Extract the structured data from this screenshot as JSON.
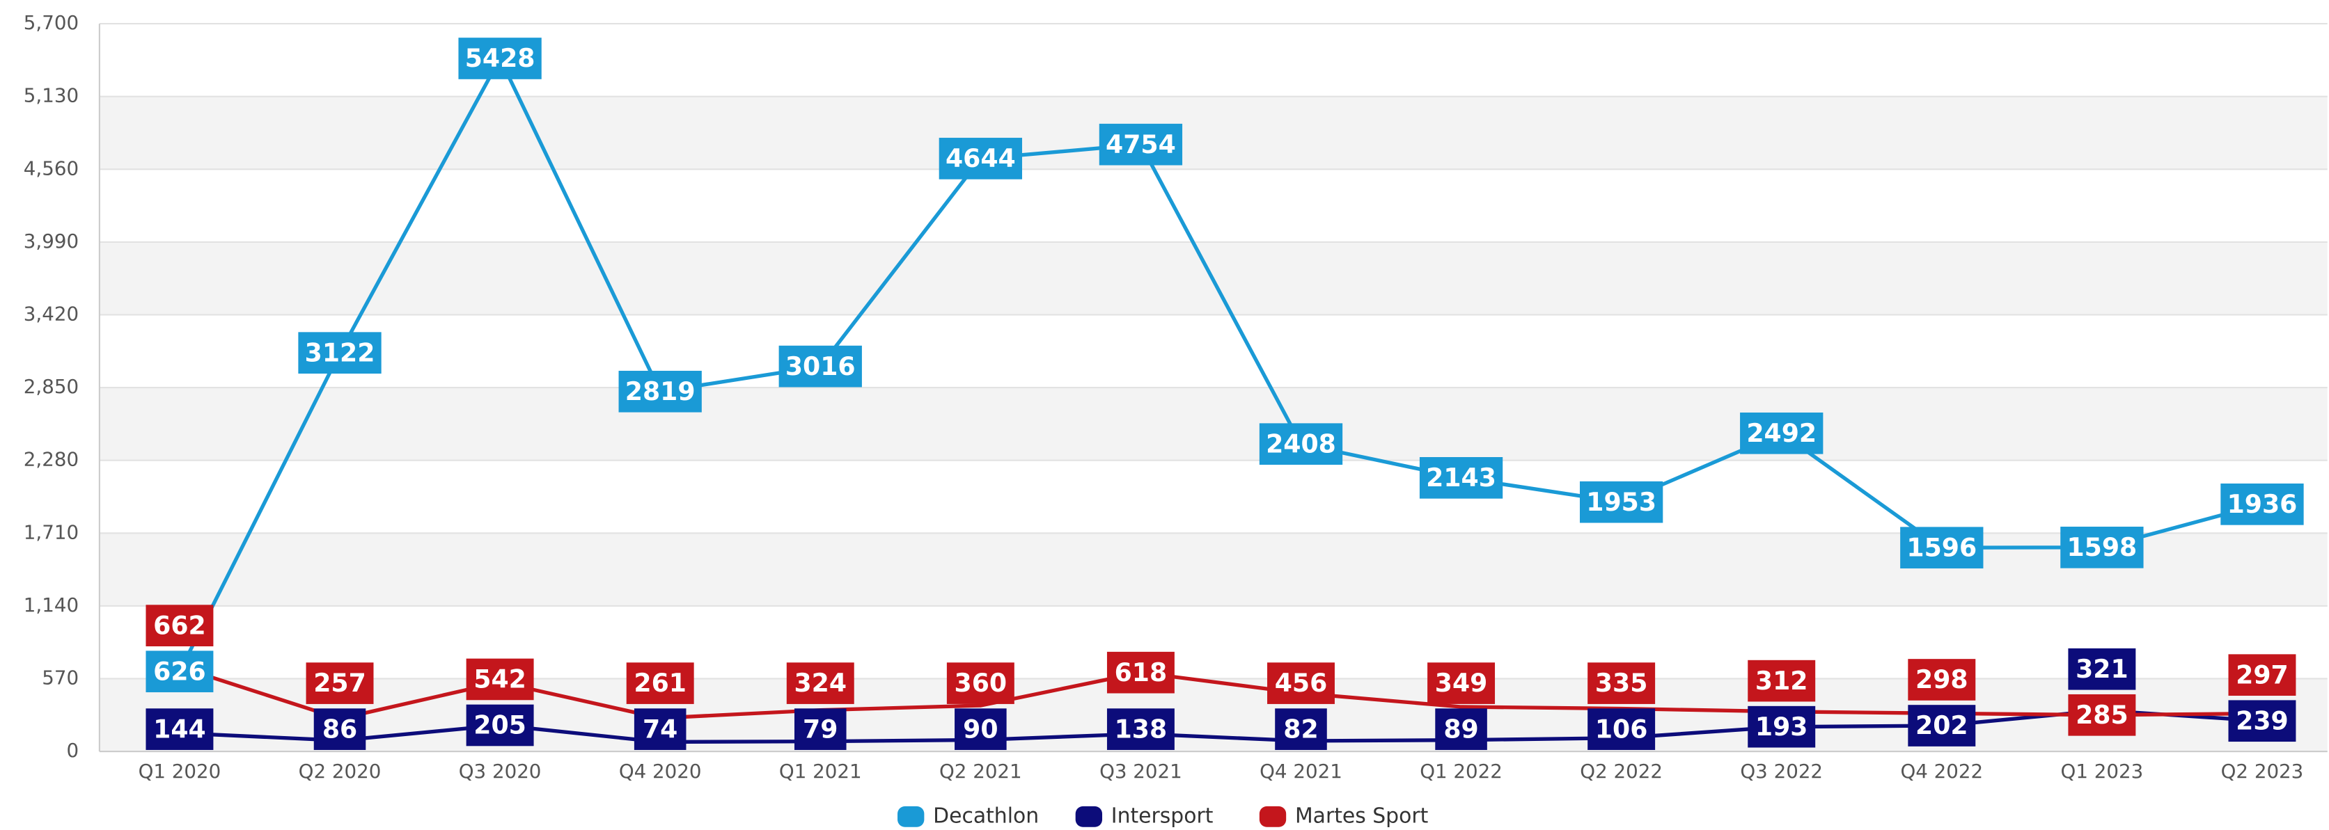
{
  "chart_data": {
    "type": "line",
    "categories": [
      "Q1 2020",
      "Q2 2020",
      "Q3 2020",
      "Q4 2020",
      "Q1 2021",
      "Q2 2021",
      "Q3 2021",
      "Q4 2021",
      "Q1 2022",
      "Q2 2022",
      "Q3 2022",
      "Q4 2022",
      "Q1 2023",
      "Q2 2023"
    ],
    "series": [
      {
        "name": "Decathlon",
        "color": "#1a9ad6",
        "values": [
          626,
          3122,
          5428,
          2819,
          3016,
          4644,
          4754,
          2408,
          2143,
          1953,
          2492,
          1596,
          1598,
          1936
        ]
      },
      {
        "name": "Intersport",
        "color": "#0c0c7a",
        "values": [
          144,
          86,
          205,
          74,
          79,
          90,
          138,
          82,
          89,
          106,
          193,
          202,
          321,
          239
        ]
      },
      {
        "name": "Martes Sport",
        "color": "#c4161c",
        "values": [
          662,
          257,
          542,
          261,
          324,
          360,
          618,
          456,
          349,
          335,
          312,
          298,
          285,
          297
        ]
      }
    ],
    "ylim": [
      0,
      5700
    ],
    "yticks": [
      0,
      570,
      {
        "value": 1140,
        "label": "1,140"
      },
      {
        "value": 1710,
        "label": "1,710"
      },
      {
        "value": 2280,
        "label": "2,280"
      },
      {
        "value": 2850,
        "label": "2,850"
      },
      {
        "value": 3420,
        "label": "3,420"
      },
      {
        "value": 3990,
        "label": "3,990"
      },
      {
        "value": 4560,
        "label": "4,560"
      },
      {
        "value": 5130,
        "label": "5,130"
      },
      {
        "value": 5700,
        "label": "5,700"
      }
    ],
    "grid": true,
    "legend": "bottom"
  }
}
